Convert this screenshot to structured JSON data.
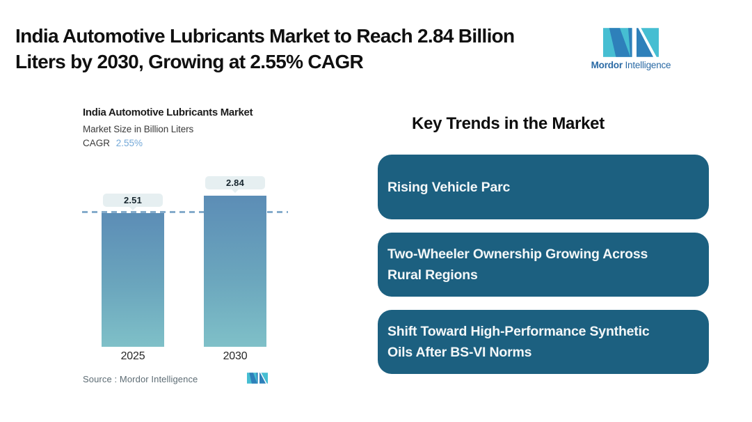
{
  "page": {
    "background": "#ffffff"
  },
  "header": {
    "title_line1": "India Automotive Lubricants Market to Reach 2.84 Billion",
    "title_line2": "Liters by 2030, Growing at 2.55% CAGR"
  },
  "brand": {
    "wordmark_bold": "Mordor",
    "wordmark_regular": "Intelligence"
  },
  "chart": {
    "title": "India Automotive Lubricants Market",
    "subtitle": "Market Size in Billion Liters",
    "cagr_label": "CAGR",
    "cagr_value": "2.55%",
    "source_text": "Source :  Mordor Intelligence"
  },
  "chart_data": {
    "type": "bar",
    "title": "India Automotive Lubricants Market",
    "ylabel": "Market Size in Billion Liters",
    "cagr_pct": 2.55,
    "categories": [
      "2025",
      "2030"
    ],
    "values": [
      2.51,
      2.84
    ],
    "value_labels": [
      "2.51",
      "2.84"
    ],
    "reference_line_at": 2.51,
    "ylim": [
      0,
      3.5
    ],
    "grid": false,
    "legend": "none",
    "bar_gradient_top": "#5c8db6",
    "bar_gradient_bottom": "#7fc0c8",
    "reference_line_color": "#85accb",
    "value_pill_bg": "#e6eff1"
  },
  "trends": {
    "heading": "Key Trends in the Market",
    "box_color": "#1c6080",
    "items": [
      {
        "line1": "Rising Vehicle Parc",
        "line2": ""
      },
      {
        "line1": "Two-Wheeler Ownership Growing Across",
        "line2": "Rural Regions"
      },
      {
        "line1": "Shift Toward High-Performance Synthetic",
        "line2": "Oils After BS-VI Norms"
      }
    ]
  },
  "colors": {
    "logo_teal": "#46bed2",
    "logo_blue": "#2e80ba",
    "wordmark_text": "#2a6aa5",
    "trend_box": "#1c6080",
    "title_text": "#101010",
    "cagr_value_text": "#74a9d8"
  }
}
